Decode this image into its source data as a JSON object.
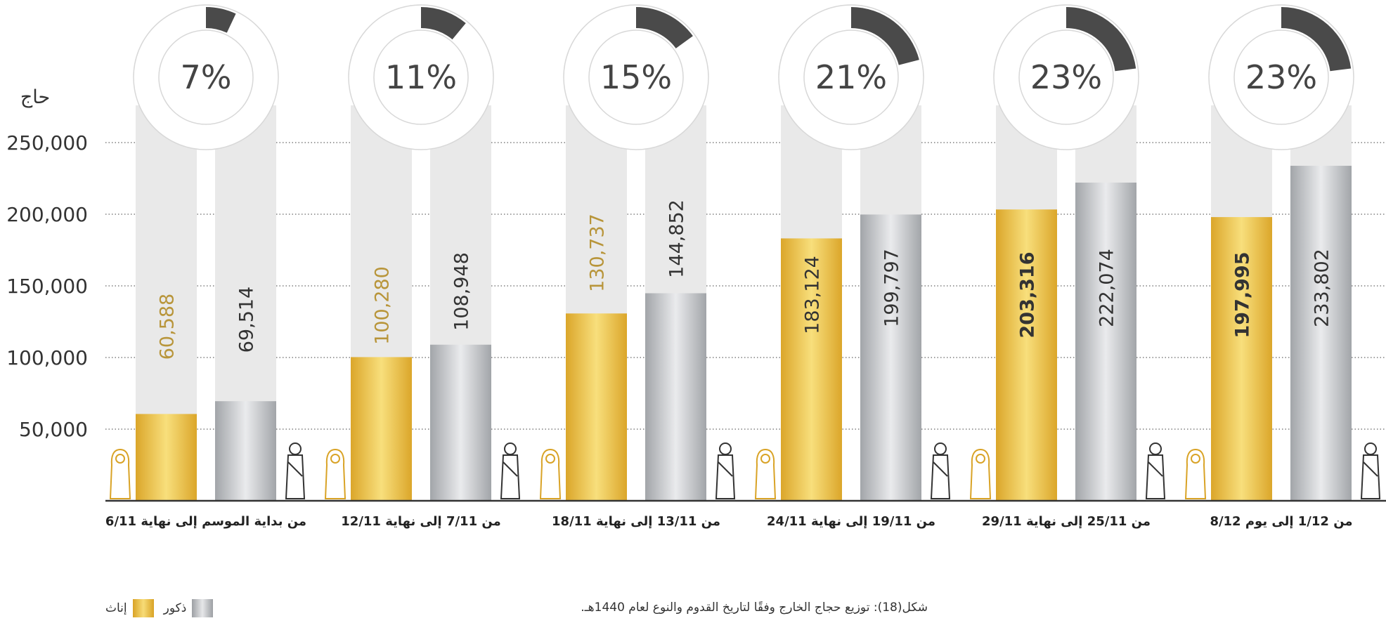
{
  "chart_data": {
    "type": "bar",
    "ylabel": "حاج",
    "ylim": [
      0,
      250000
    ],
    "yticks": [
      "250,000",
      "200,000",
      "150,000",
      "100,000",
      "50,000"
    ],
    "ytick_values": [
      250000,
      200000,
      150000,
      100000,
      50000
    ],
    "categories": [
      "من بداية الموسم إلى نهاية 6/11",
      "من 7/11 إلى نهاية 12/11",
      "من 13/11 إلى نهاية 18/11",
      "من 19/11 إلى نهاية 24/11",
      "من 25/11 إلى نهاية 29/11",
      "من 1/12  إلى يوم 8/12"
    ],
    "series": [
      {
        "name": "إناث",
        "values": [
          60588,
          100280,
          130737,
          183124,
          203316,
          197995
        ],
        "labels": [
          "60,588",
          "100,280",
          "130,737",
          "183,124",
          "203,316",
          "197,995"
        ]
      },
      {
        "name": "ذكور",
        "values": [
          69514,
          108948,
          144852,
          199797,
          222074,
          233802
        ],
        "labels": [
          "69,514",
          "108,948",
          "144,852",
          "199,797",
          "222,074",
          "233,802"
        ]
      }
    ],
    "donut_percentages": [
      7,
      11,
      15,
      21,
      23,
      23
    ],
    "donut_labels": [
      "7%",
      "11%",
      "15%",
      "21%",
      "23%",
      "23%"
    ],
    "grid": "dotted horizontal",
    "legend_position": "bottom-left"
  },
  "caption": "شكل(18): توزيع حجاج الخارج وفقًا لتاريخ القدوم والنوع لعام 1440هـ.",
  "legend": {
    "male": "ذكور",
    "female": "إناث"
  },
  "colors": {
    "female": "#e8b73c",
    "male": "#b9bbbe",
    "donut_fill": "#4a4a4a",
    "track": "#e9e9e9",
    "female_label": "#b8953a",
    "text": "#333333"
  }
}
